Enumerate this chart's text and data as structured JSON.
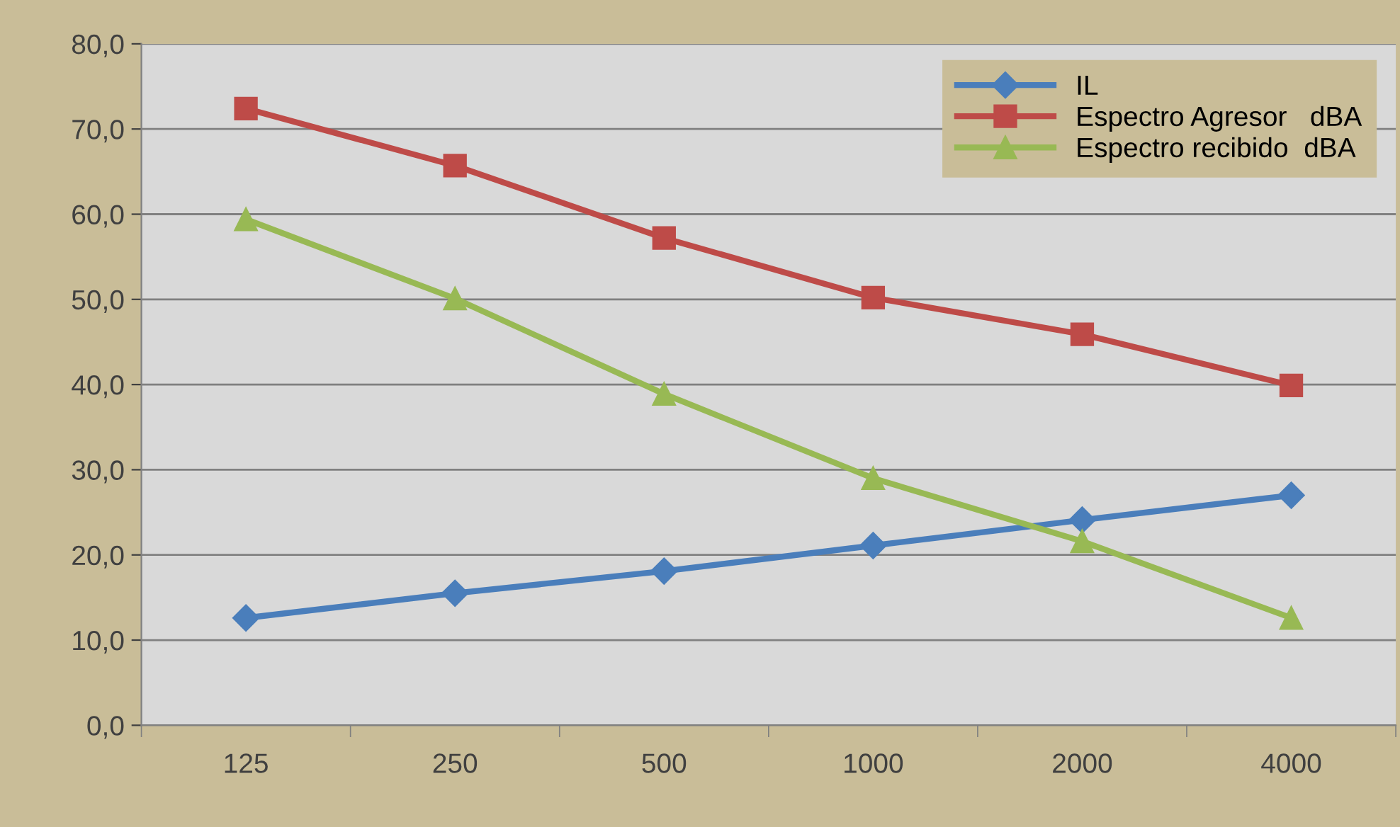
{
  "chart_data": {
    "type": "line",
    "categories": [
      "125",
      "250",
      "500",
      "1000",
      "2000",
      "4000"
    ],
    "series": [
      {
        "name": "IL",
        "color": "#4a7ebb",
        "marker": "diamond",
        "values": [
          12.6,
          15.5,
          18.1,
          21.1,
          24.1,
          27.0
        ]
      },
      {
        "name": "Espectro Agresor   dBA",
        "color": "#be4b48",
        "marker": "square",
        "values": [
          72.4,
          65.7,
          57.2,
          50.2,
          45.9,
          39.9
        ]
      },
      {
        "name": "Espectro recibido  dBA",
        "color": "#98b954",
        "marker": "triangle",
        "values": [
          59.4,
          50.1,
          38.9,
          29.0,
          21.6,
          12.6
        ]
      }
    ],
    "ylim": [
      0,
      80
    ],
    "yticks": [
      {
        "value": 0,
        "label": "0,0"
      },
      {
        "value": 10,
        "label": "10,0"
      },
      {
        "value": 20,
        "label": "20,0"
      },
      {
        "value": 30,
        "label": "30,0"
      },
      {
        "value": 40,
        "label": "40,0"
      },
      {
        "value": 50,
        "label": "50,0"
      },
      {
        "value": 60,
        "label": "60,0"
      },
      {
        "value": 70,
        "label": "70,0"
      },
      {
        "value": 80,
        "label": "80,0"
      }
    ],
    "grid": "y",
    "legend": "top right"
  }
}
